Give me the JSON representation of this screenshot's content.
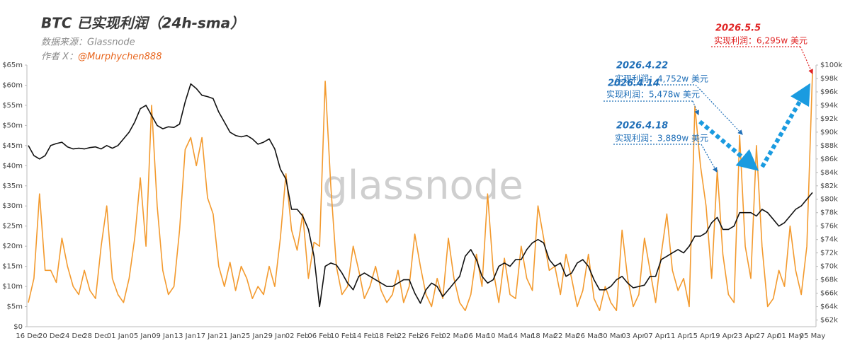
{
  "chart_data": {
    "type": "line",
    "title": "BTC 已实现利润（24h-sma）",
    "subtitle": "数据来源：Glassnode",
    "author_label": "作者 X：",
    "author_handle": "@Murphychen888",
    "watermark": "glassnode",
    "categories": [
      "16 Dec",
      null,
      null,
      null,
      "20 Dec",
      null,
      null,
      null,
      "24 Dec",
      null,
      null,
      null,
      "28 Dec",
      null,
      null,
      null,
      "01 Jan",
      null,
      null,
      null,
      "05 Jan",
      null,
      null,
      null,
      "09 Jan",
      null,
      null,
      null,
      "13 Jan",
      null,
      null,
      null,
      "17 Jan",
      null,
      null,
      null,
      "21 Jan",
      null,
      null,
      null,
      "25 Jan",
      null,
      null,
      null,
      "29 Jan",
      null,
      null,
      null,
      "02 Feb",
      null,
      null,
      null,
      "06 Feb",
      null,
      null,
      null,
      "10 Feb",
      null,
      null,
      null,
      "14 Feb",
      null,
      null,
      null,
      "18 Feb",
      null,
      null,
      null,
      "22 Feb",
      null,
      null,
      null,
      "26 Feb",
      null,
      null,
      null,
      "02 Mar",
      null,
      null,
      null,
      "06 Mar",
      null,
      null,
      null,
      "10 Mar",
      null,
      null,
      null,
      "14 Mar",
      null,
      null,
      null,
      "18 Mar",
      null,
      null,
      null,
      "22 Mar",
      null,
      null,
      null,
      "26 Mar",
      null,
      null,
      null,
      "30 Mar",
      null,
      null,
      null,
      "03 Apr",
      null,
      null,
      null,
      "07 Apr",
      null,
      null,
      null,
      "11 Apr",
      null,
      null,
      null,
      "15 Apr",
      null,
      null,
      null,
      "19 Apr",
      null,
      null,
      null,
      "23 Apr",
      null,
      null,
      null,
      "27 Apr",
      null,
      null,
      null,
      "01 May",
      null,
      null,
      null,
      "05 May"
    ],
    "series": [
      {
        "color": "#f39a2e",
        "axis": "y",
        "values": [
          6,
          12,
          33,
          14,
          14,
          11,
          22,
          15,
          10,
          8,
          14,
          9,
          7,
          20,
          30,
          12,
          8,
          6,
          12,
          22,
          37,
          20,
          55,
          30,
          14,
          8,
          10,
          24,
          44,
          47,
          40,
          47,
          32,
          28,
          15,
          10,
          16,
          9,
          15,
          12,
          7,
          10,
          8,
          15,
          10,
          22,
          38,
          24,
          19,
          28,
          12,
          21,
          20,
          61,
          35,
          15,
          8,
          10,
          20,
          14,
          7,
          10,
          15,
          9,
          6,
          8,
          14,
          6,
          10,
          23,
          15,
          8,
          5,
          12,
          7,
          22,
          12,
          6,
          4,
          8,
          18,
          10,
          33,
          14,
          6,
          17,
          8,
          7,
          20,
          12,
          9,
          30,
          22,
          14,
          15,
          8,
          18,
          12,
          5,
          9,
          18,
          7,
          4,
          10,
          6,
          4,
          24,
          12,
          5,
          8,
          22,
          14,
          6,
          18,
          28,
          14,
          9,
          12,
          5,
          54.78,
          40,
          30,
          12,
          38.89,
          18,
          8,
          6,
          47.52,
          20,
          12,
          45,
          20,
          5,
          7,
          14,
          10,
          25,
          14,
          8,
          20,
          62.95
        ]
      },
      {
        "color": "#111111",
        "axis": "y2",
        "values": [
          88,
          86.5,
          86,
          86.5,
          88,
          88.3,
          88.5,
          87.8,
          87.5,
          87.6,
          87.5,
          87.7,
          87.8,
          87.5,
          88,
          87.6,
          88,
          89,
          90,
          91.5,
          93.5,
          94,
          92.5,
          91,
          90.5,
          90.8,
          90.7,
          91.2,
          94.5,
          97.2,
          96.5,
          95.5,
          95.3,
          95,
          93,
          91.5,
          90,
          89.5,
          89.3,
          89.5,
          89,
          88.2,
          88.5,
          89,
          87.5,
          84.5,
          83,
          78.5,
          78.5,
          77.5,
          75.5,
          71.5,
          64,
          70,
          70.5,
          70.2,
          69,
          67.5,
          66.5,
          68.5,
          69,
          68.5,
          68,
          67.5,
          67,
          67,
          67.5,
          68,
          68,
          66,
          64.5,
          66.5,
          67.5,
          67,
          65.5,
          66.5,
          67.5,
          68.5,
          71.5,
          72.5,
          71,
          68.5,
          67.5,
          68,
          70,
          70.5,
          70,
          71,
          71,
          72.5,
          73.5,
          74,
          73.5,
          71,
          70,
          70.5,
          68.5,
          69,
          70.5,
          71,
          70,
          68,
          66.5,
          66.5,
          67,
          68,
          68.5,
          67.5,
          66.8,
          67,
          67.2,
          68.5,
          68.5,
          71,
          71.5,
          72,
          72.5,
          72,
          73,
          74.5,
          74.5,
          75,
          76.5,
          77.3,
          75.5,
          75.5,
          76,
          78,
          78,
          78,
          77.5,
          78.5,
          78,
          77,
          76,
          76.5,
          77.5,
          78.5,
          79,
          80,
          81
        ]
      }
    ],
    "ylim": [
      0,
      65
    ],
    "yticks": [
      {
        "value": 0,
        "label": "$0"
      },
      {
        "value": 5,
        "label": "$5m"
      },
      {
        "value": 10,
        "label": "$10m"
      },
      {
        "value": 15,
        "label": "$15m"
      },
      {
        "value": 20,
        "label": "$20m"
      },
      {
        "value": 25,
        "label": "$25m"
      },
      {
        "value": 30,
        "label": "$30m"
      },
      {
        "value": 35,
        "label": "$35m"
      },
      {
        "value": 40,
        "label": "$40m"
      },
      {
        "value": 45,
        "label": "$45m"
      },
      {
        "value": 50,
        "label": "$50m"
      },
      {
        "value": 55,
        "label": "$55m"
      },
      {
        "value": 60,
        "label": "$60m"
      },
      {
        "value": 65,
        "label": "$65m"
      }
    ],
    "y2lim": [
      61,
      100
    ],
    "y2ticks": [
      {
        "value": 62,
        "label": "$62k"
      },
      {
        "value": 64,
        "label": "$64k"
      },
      {
        "value": 66,
        "label": "$66k"
      },
      {
        "value": 68,
        "label": "$68k"
      },
      {
        "value": 70,
        "label": "$70k"
      },
      {
        "value": 72,
        "label": "$72k"
      },
      {
        "value": 74,
        "label": "$74k"
      },
      {
        "value": 76,
        "label": "$76k"
      },
      {
        "value": 78,
        "label": "$78k"
      },
      {
        "value": 80,
        "label": "$80k"
      },
      {
        "value": 82,
        "label": "$82k"
      },
      {
        "value": 84,
        "label": "$84k"
      },
      {
        "value": 86,
        "label": "$86k"
      },
      {
        "value": 88,
        "label": "$88k"
      },
      {
        "value": 90,
        "label": "$90k"
      },
      {
        "value": 92,
        "label": "$92k"
      },
      {
        "value": 94,
        "label": "$94k"
      },
      {
        "value": 96,
        "label": "$96k"
      },
      {
        "value": 98,
        "label": "$98k"
      },
      {
        "value": 100,
        "label": "$100k"
      }
    ],
    "grid": false,
    "annotations": [
      {
        "date": "2026.4.22",
        "text": "实现利润：4,752w 美元",
        "color": "#1f6fb8"
      },
      {
        "date": "2026.4.14",
        "text": "实现利润：5,478w 美元",
        "color": "#1f6fb8"
      },
      {
        "date": "2026.4.18",
        "text": "实现利润：3,889w 美元",
        "color": "#1f6fb8"
      },
      {
        "date": "2026.5.5",
        "text": "实现利润：6,295w 美元",
        "color": "#e02424"
      }
    ]
  }
}
